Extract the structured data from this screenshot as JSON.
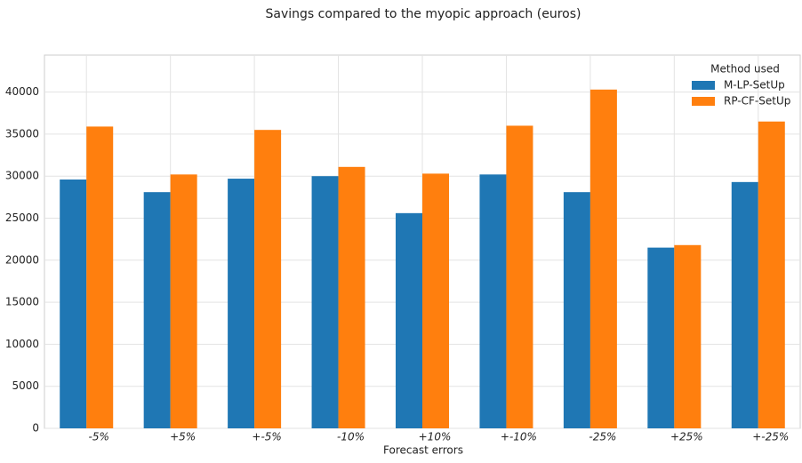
{
  "chart_data": {
    "type": "bar",
    "title": "Savings compared to the myopic approach (euros)",
    "x_label": "Forecast errors",
    "categories": [
      "-5%",
      "+5%",
      "+-5%",
      "-10%",
      "+10%",
      "+-10%",
      "-25%",
      "+25%",
      "+-25%"
    ],
    "series": [
      {
        "name": "M-LP-SetUp",
        "color": "#1f77b4",
        "values": [
          29600,
          28100,
          29700,
          30000,
          25600,
          30200,
          28100,
          21500,
          29300
        ]
      },
      {
        "name": "RP-CF-SetUp",
        "color": "#ff7f0e",
        "values": [
          35900,
          30200,
          35500,
          31100,
          30300,
          36000,
          40300,
          21800,
          36500
        ]
      }
    ],
    "legend_title": "Method used",
    "legend": "upper right",
    "ylim": [
      0,
      44400
    ],
    "yticks": [
      0,
      5000,
      10000,
      15000,
      20000,
      25000,
      30000,
      35000,
      40000
    ],
    "grid": true
  }
}
